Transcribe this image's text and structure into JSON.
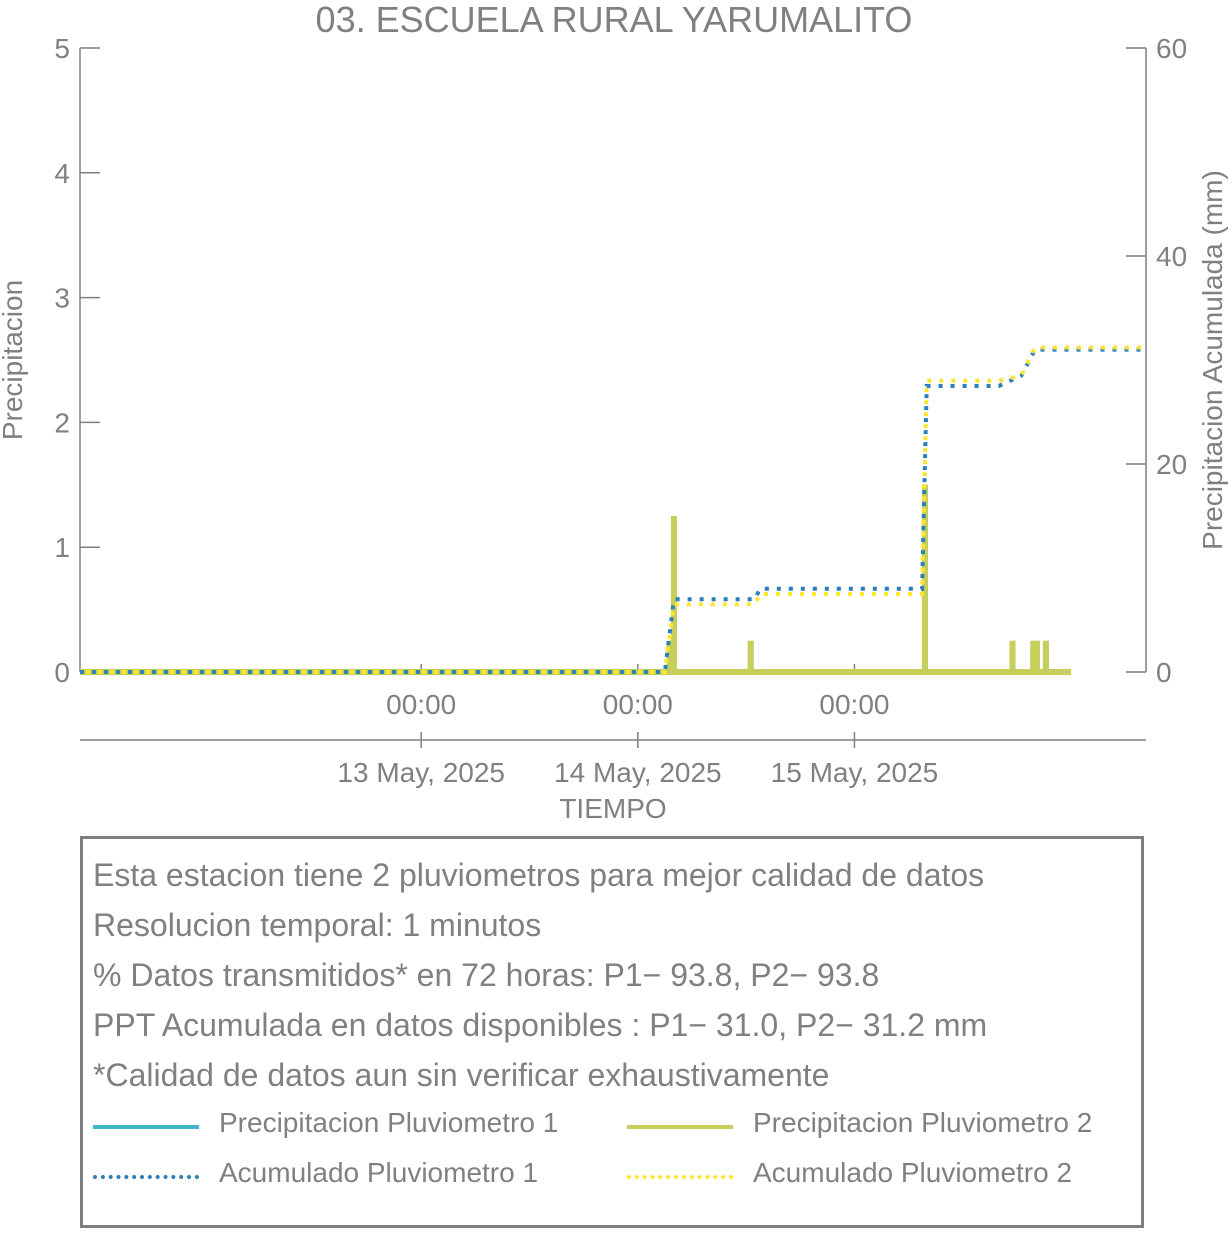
{
  "chart_data": {
    "type": "bar",
    "title": "03. ESCUELA RURAL YARUMALITO",
    "xlabel": "TIEMPO",
    "ylabel": "Precipitacion",
    "y2label": "Precipitacion Acumulada (mm)",
    "ylim": [
      0,
      5
    ],
    "y2lim": [
      0,
      60
    ],
    "yticks": [
      "0",
      "1",
      "2",
      "3",
      "4",
      "5"
    ],
    "y2ticks": [
      "0",
      "20",
      "40",
      "60"
    ],
    "xlim_hours": [
      -37.8,
      80.3
    ],
    "xtick_time_labels": [
      "00:00",
      "00:00",
      "00:00"
    ],
    "xtick_date_labels": [
      "13 May, 2025",
      "14 May, 2025",
      "15 May, 2025"
    ],
    "series": [
      {
        "name": "Precipitacion Pluviometro 1",
        "color": "#41b6c4",
        "style": "solid",
        "points_hours_value": [
          [
            27.5,
            0.25
          ],
          [
            28.0,
            1.25
          ],
          [
            36.5,
            0.25
          ],
          [
            55.8,
            1.5
          ],
          [
            65.5,
            0.25
          ],
          [
            67.8,
            0.25
          ],
          [
            68.2,
            0.25
          ],
          [
            69.2,
            0.25
          ]
        ]
      },
      {
        "name": "Precipitacion Pluviometro 2",
        "color": "#c7cf5a",
        "style": "solid",
        "points_hours_value": [
          [
            27.5,
            0.25
          ],
          [
            28.0,
            1.25
          ],
          [
            36.5,
            0.25
          ],
          [
            55.8,
            1.5
          ],
          [
            65.5,
            0.25
          ],
          [
            67.8,
            0.25
          ],
          [
            68.2,
            0.25
          ],
          [
            69.2,
            0.25
          ]
        ]
      },
      {
        "name": "Acumulado Pluviometro 1",
        "color": "#2c7fb8",
        "style": "dotted",
        "points_hours_value": [
          [
            -37.8,
            0
          ],
          [
            27.0,
            0
          ],
          [
            28.0,
            7.0
          ],
          [
            37.0,
            7.0
          ],
          [
            37.5,
            8.0
          ],
          [
            55.5,
            8.0
          ],
          [
            56.0,
            27.5
          ],
          [
            64.0,
            27.5
          ],
          [
            66.5,
            28.5
          ],
          [
            68.0,
            31.0
          ],
          [
            80.3,
            31.0
          ]
        ]
      },
      {
        "name": "Acumulado Pluviometro 2",
        "color": "#ffe62e",
        "style": "dotted",
        "points_hours_value": [
          [
            -37.8,
            0
          ],
          [
            27.0,
            0
          ],
          [
            28.0,
            6.5
          ],
          [
            37.0,
            6.5
          ],
          [
            37.5,
            7.5
          ],
          [
            55.5,
            7.5
          ],
          [
            56.0,
            28.0
          ],
          [
            64.0,
            28.0
          ],
          [
            66.5,
            28.5
          ],
          [
            68.0,
            31.2
          ],
          [
            80.3,
            31.2
          ]
        ]
      }
    ]
  },
  "info": {
    "line1": "Esta estacion tiene 2 pluviometros para mejor calidad de datos",
    "line2": "Resolucion temporal: 1 minutos",
    "line3": "% Datos transmitidos* en 72 horas: P1− 93.8, P2− 93.8",
    "line4": "PPT Acumulada en datos disponibles : P1− 31.0, P2− 31.2 mm",
    "line5": "*Calidad de datos aun sin verificar exhaustivamente"
  },
  "legend": {
    "p1": "Precipitacion Pluviometro 1",
    "p2": "Precipitacion Pluviometro 2",
    "a1": "Acumulado Pluviometro 1",
    "a2": "Acumulado Pluviometro 2"
  }
}
